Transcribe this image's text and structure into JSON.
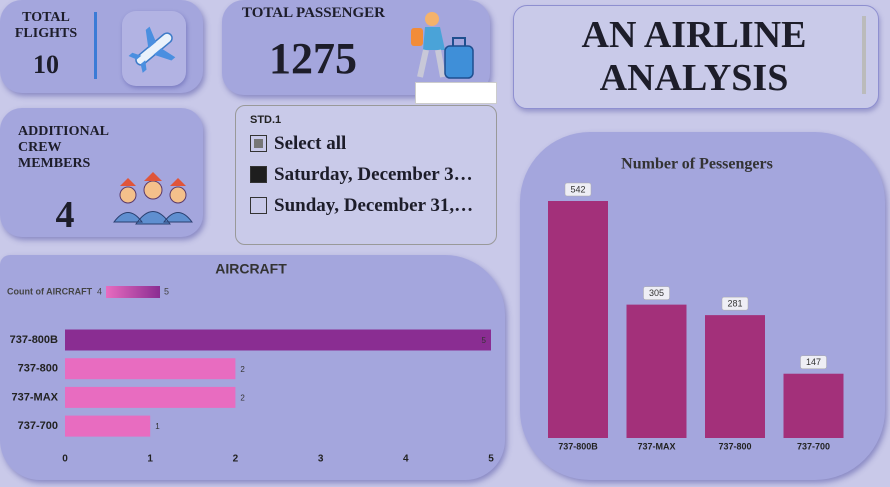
{
  "cards": [
    {
      "label": "TOTAL FLIGHTS",
      "value": 10
    },
    {
      "label": "TOTAL PASSENGER",
      "value": 1275
    },
    {
      "label": "ADDITIONAL CREW MEMBERS",
      "value": 4
    }
  ],
  "title": "AN AIRLINE ANALYSIS",
  "slicer": {
    "title": "STD.1",
    "options": [
      "Select all",
      "Saturday, December 3…",
      "Sunday, December 31,…"
    ],
    "states": [
      "partial",
      "checked",
      "unchecked"
    ]
  },
  "chart_data": [
    {
      "type": "hbar",
      "title": "AIRCRAFT",
      "categories": [
        "737-800B",
        "737-800",
        "737-MAX",
        "737-700"
      ],
      "values": [
        5,
        2,
        2,
        1
      ],
      "colors": [
        "#8a2d92",
        "#e86cc0",
        "#e86cc0",
        "#e86cc0"
      ],
      "xlim": [
        0,
        5
      ],
      "xticks": [
        0,
        1,
        2,
        3,
        4,
        5
      ],
      "color_legend": {
        "title": "Count of AIRCRAFT",
        "min": 4,
        "max": 5,
        "colors": [
          "#e86cc0",
          "#8a2d92"
        ]
      }
    },
    {
      "type": "bar",
      "title": "Number of Pessengers",
      "categories": [
        "737-800B",
        "737-MAX",
        "737-800",
        "737-700"
      ],
      "values": [
        542,
        305,
        281,
        147
      ],
      "color": "#a3307a"
    }
  ]
}
